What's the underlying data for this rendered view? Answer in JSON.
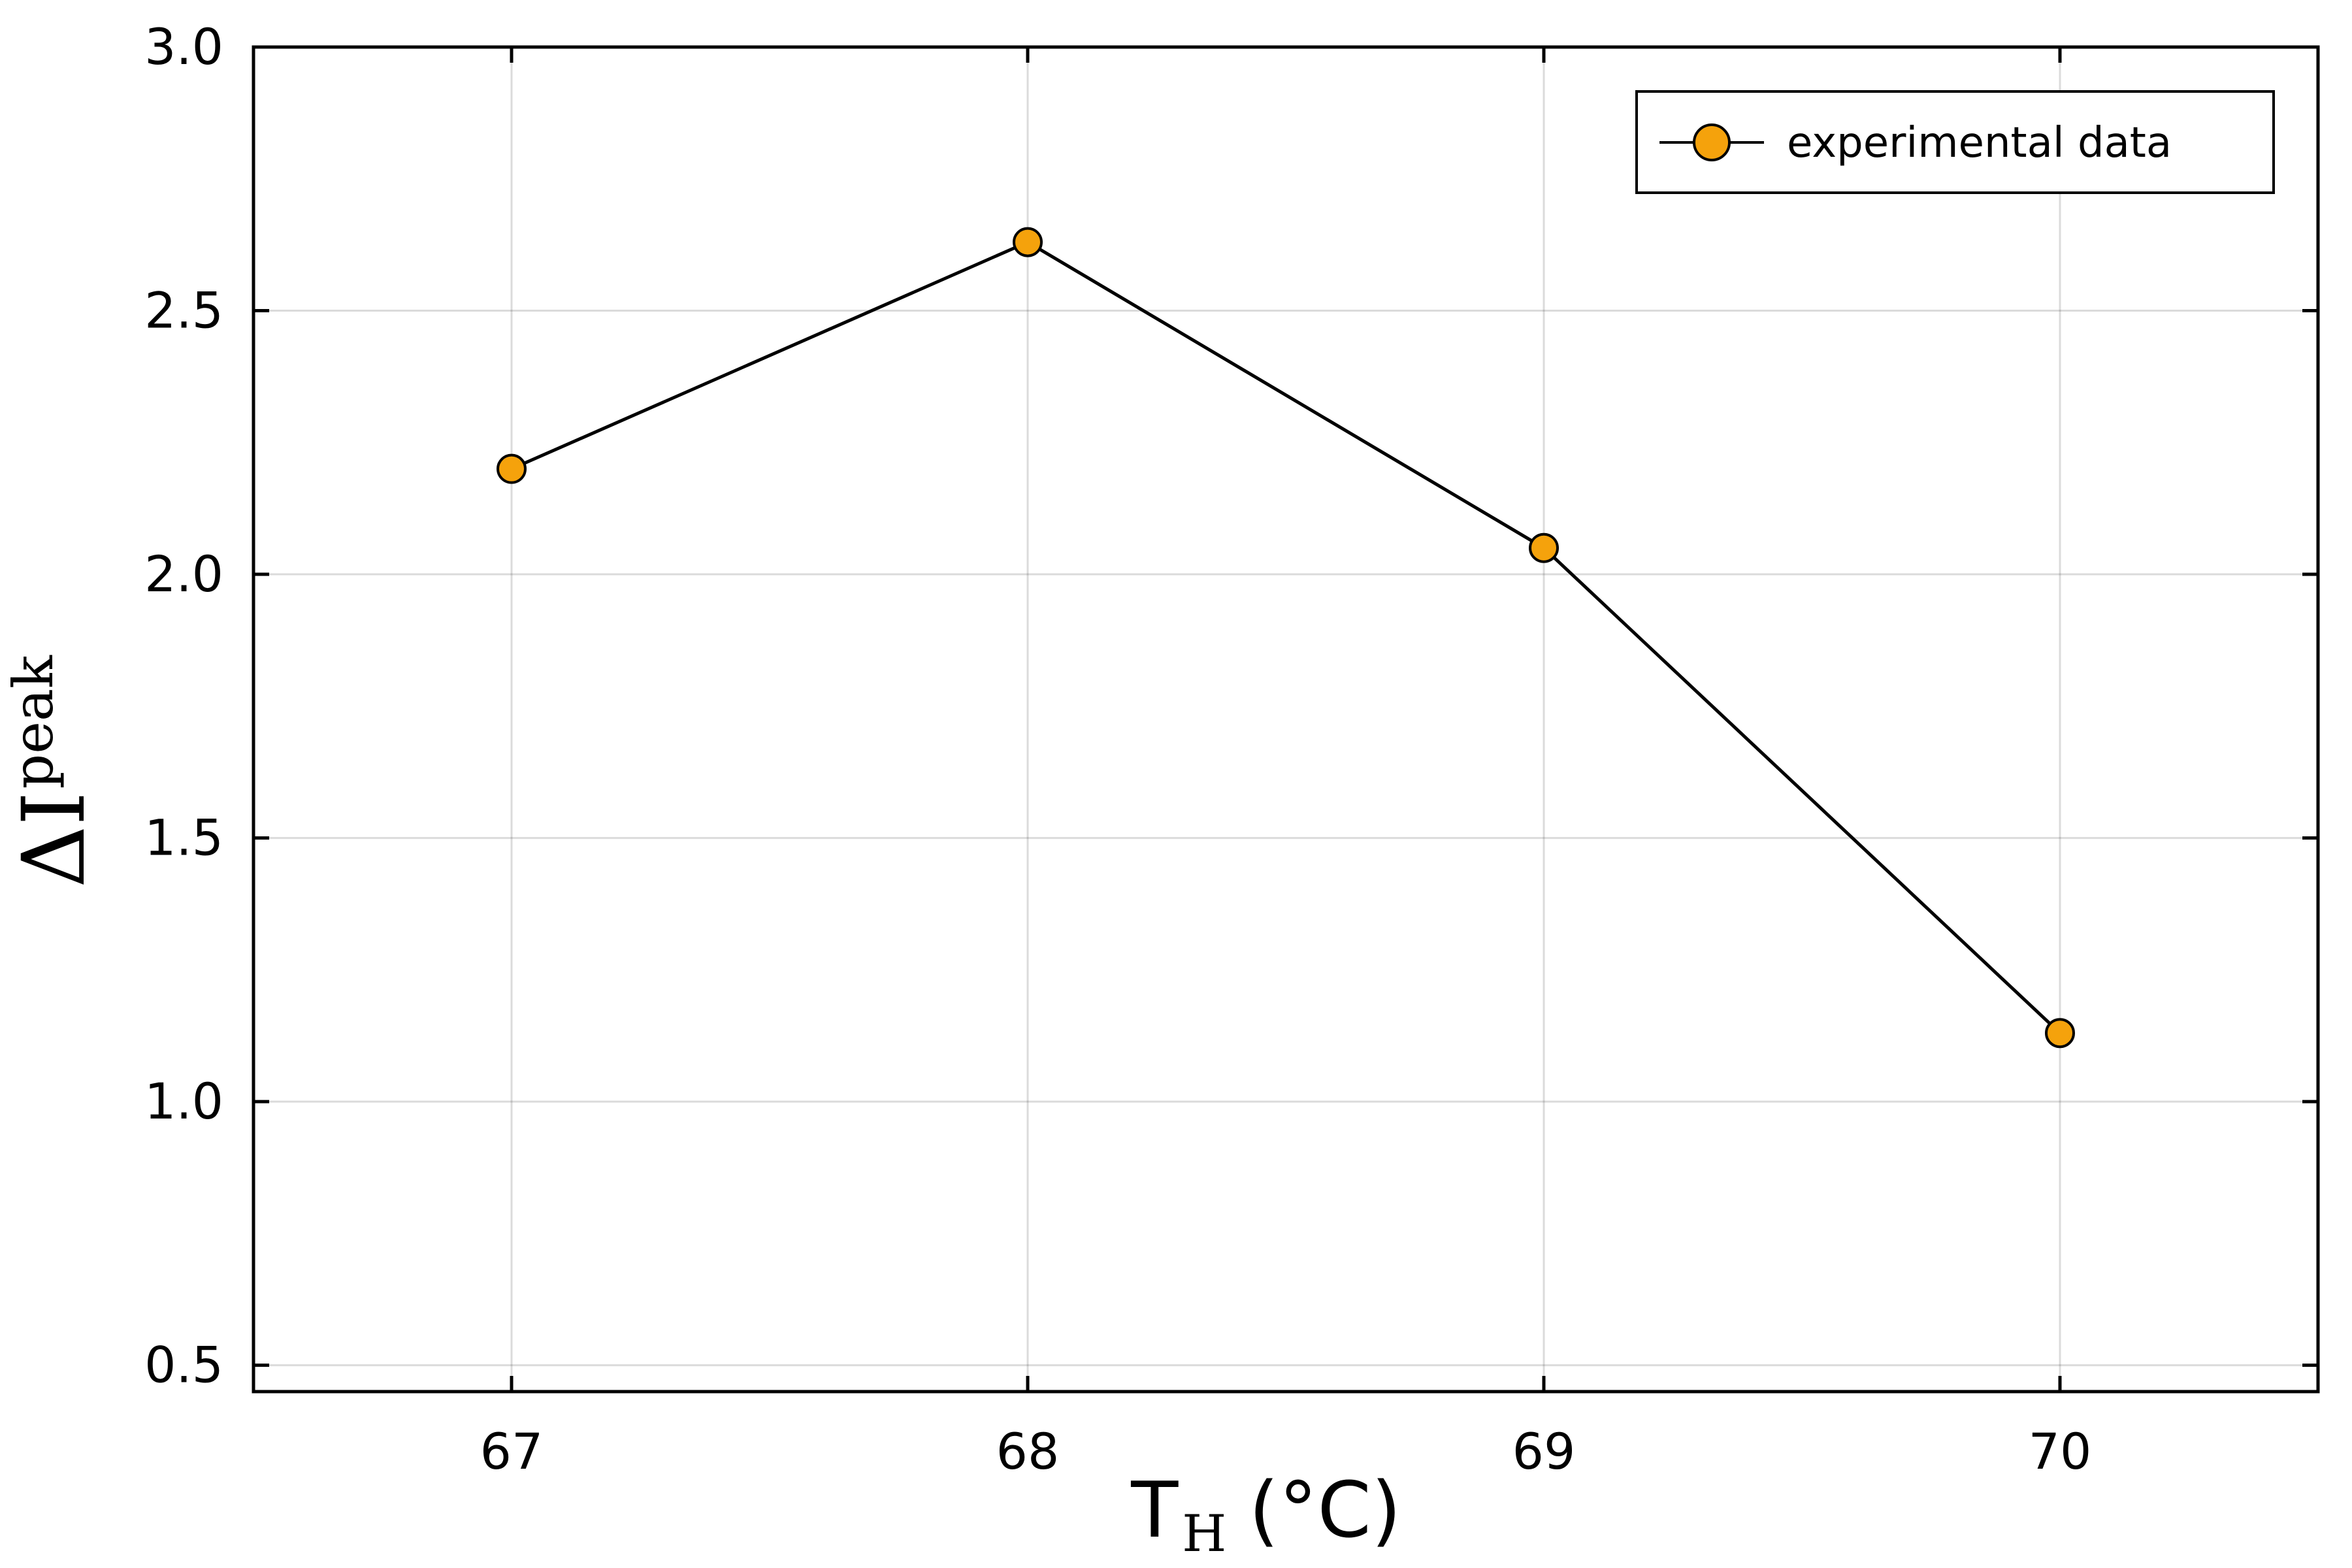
{
  "chart_data": {
    "type": "line",
    "title": "",
    "xlabel": {
      "main": "T",
      "sub": "H",
      "unit": "(°C)"
    },
    "ylabel": {
      "main": "ΔI",
      "sup": "peak"
    },
    "xlim": [
      66.5,
      70.5
    ],
    "ylim": [
      0.45,
      3.0
    ],
    "xticks": [
      67,
      68,
      69,
      70
    ],
    "xtick_labels": [
      "67",
      "68",
      "69",
      "70"
    ],
    "yticks": [
      0.5,
      1.0,
      1.5,
      2.0,
      2.5,
      3.0
    ],
    "ytick_labels": [
      "0.5",
      "1.0",
      "1.5",
      "2.0",
      "2.5",
      "3.0"
    ],
    "grid": true,
    "legend_position": "top-right",
    "series": [
      {
        "name": "experimental data",
        "x": [
          67,
          68,
          69,
          70
        ],
        "y": [
          2.2,
          2.63,
          2.05,
          1.13
        ],
        "line_color": "#000000",
        "marker_fill": "#f5a20c",
        "marker_edge": "#000000"
      }
    ]
  }
}
